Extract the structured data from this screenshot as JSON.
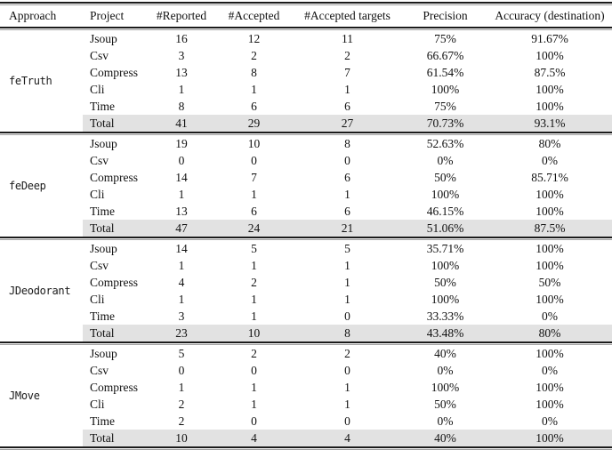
{
  "table": {
    "headers": [
      "Approach",
      "Project",
      "#Reported",
      "#Accepted",
      "#Accepted targets",
      "Precision",
      "Accuracy (destination)"
    ],
    "groups": [
      {
        "approach": "feTruth",
        "rows": [
          {
            "project": "Jsoup",
            "reported": "16",
            "accepted": "12",
            "targets": "11",
            "precision": "75%",
            "accuracy": "91.67%"
          },
          {
            "project": "Csv",
            "reported": "3",
            "accepted": "2",
            "targets": "2",
            "precision": "66.67%",
            "accuracy": "100%"
          },
          {
            "project": "Compress",
            "reported": "13",
            "accepted": "8",
            "targets": "7",
            "precision": "61.54%",
            "accuracy": "87.5%"
          },
          {
            "project": "Cli",
            "reported": "1",
            "accepted": "1",
            "targets": "1",
            "precision": "100%",
            "accuracy": "100%"
          },
          {
            "project": "Time",
            "reported": "8",
            "accepted": "6",
            "targets": "6",
            "precision": "75%",
            "accuracy": "100%"
          },
          {
            "project": "Total",
            "reported": "41",
            "accepted": "29",
            "targets": "27",
            "precision": "70.73%",
            "accuracy": "93.1%"
          }
        ]
      },
      {
        "approach": "feDeep",
        "rows": [
          {
            "project": "Jsoup",
            "reported": "19",
            "accepted": "10",
            "targets": "8",
            "precision": "52.63%",
            "accuracy": "80%"
          },
          {
            "project": "Csv",
            "reported": "0",
            "accepted": "0",
            "targets": "0",
            "precision": "0%",
            "accuracy": "0%"
          },
          {
            "project": "Compress",
            "reported": "14",
            "accepted": "7",
            "targets": "6",
            "precision": "50%",
            "accuracy": "85.71%"
          },
          {
            "project": "Cli",
            "reported": "1",
            "accepted": "1",
            "targets": "1",
            "precision": "100%",
            "accuracy": "100%"
          },
          {
            "project": "Time",
            "reported": "13",
            "accepted": "6",
            "targets": "6",
            "precision": "46.15%",
            "accuracy": "100%"
          },
          {
            "project": "Total",
            "reported": "47",
            "accepted": "24",
            "targets": "21",
            "precision": "51.06%",
            "accuracy": "87.5%"
          }
        ]
      },
      {
        "approach": "JDeodorant",
        "rows": [
          {
            "project": "Jsoup",
            "reported": "14",
            "accepted": "5",
            "targets": "5",
            "precision": "35.71%",
            "accuracy": "100%"
          },
          {
            "project": "Csv",
            "reported": "1",
            "accepted": "1",
            "targets": "1",
            "precision": "100%",
            "accuracy": "100%"
          },
          {
            "project": "Compress",
            "reported": "4",
            "accepted": "2",
            "targets": "1",
            "precision": "50%",
            "accuracy": "50%"
          },
          {
            "project": "Cli",
            "reported": "1",
            "accepted": "1",
            "targets": "1",
            "precision": "100%",
            "accuracy": "100%"
          },
          {
            "project": "Time",
            "reported": "3",
            "accepted": "1",
            "targets": "0",
            "precision": "33.33%",
            "accuracy": "0%"
          },
          {
            "project": "Total",
            "reported": "23",
            "accepted": "10",
            "targets": "8",
            "precision": "43.48%",
            "accuracy": "80%"
          }
        ]
      },
      {
        "approach": "JMove",
        "rows": [
          {
            "project": "Jsoup",
            "reported": "5",
            "accepted": "2",
            "targets": "2",
            "precision": "40%",
            "accuracy": "100%"
          },
          {
            "project": "Csv",
            "reported": "0",
            "accepted": "0",
            "targets": "0",
            "precision": "0%",
            "accuracy": "0%"
          },
          {
            "project": "Compress",
            "reported": "1",
            "accepted": "1",
            "targets": "1",
            "precision": "100%",
            "accuracy": "100%"
          },
          {
            "project": "Cli",
            "reported": "2",
            "accepted": "1",
            "targets": "1",
            "precision": "50%",
            "accuracy": "100%"
          },
          {
            "project": "Time",
            "reported": "2",
            "accepted": "0",
            "targets": "0",
            "precision": "0%",
            "accuracy": "0%"
          },
          {
            "project": "Total",
            "reported": "10",
            "accepted": "4",
            "targets": "4",
            "precision": "40%",
            "accuracy": "100%"
          }
        ]
      }
    ],
    "colors": {
      "background": "#ffffff",
      "text": "#111111",
      "total_row_bg": "#e2e2e2",
      "rule_dark": "#1b1b1b",
      "rule_light": "#9e9e9e"
    }
  }
}
